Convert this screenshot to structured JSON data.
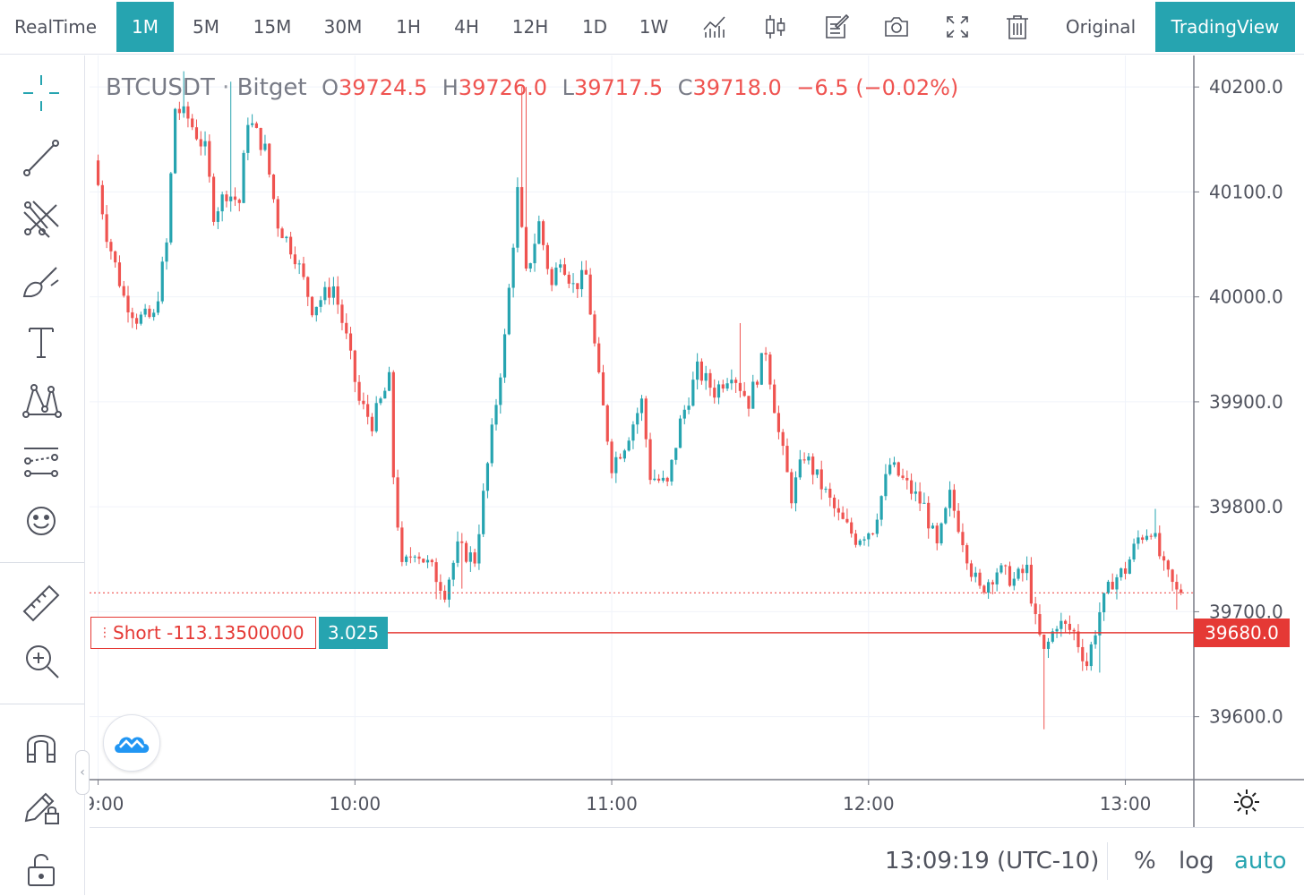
{
  "toolbar": {
    "realtime": "RealTime",
    "intervals": [
      "1M",
      "5M",
      "15M",
      "30M",
      "1H",
      "4H",
      "12H",
      "1D",
      "1W"
    ],
    "active_interval": "1M",
    "icons": [
      "indicators-icon",
      "candle-type-icon",
      "note-icon",
      "camera-icon",
      "fullscreen-icon",
      "trash-icon"
    ],
    "original": "Original",
    "tradingview": "TradingView"
  },
  "sidebar": {
    "tools": [
      "crosshair-icon",
      "trend-line-icon",
      "pitchfork-icon",
      "brush-icon",
      "text-tool-icon",
      "pattern-icon",
      "forecast-icon",
      "emoji-icon",
      "ruler-icon",
      "zoom-in-icon",
      "magnet-icon",
      "lock-drawing-icon",
      "unlock-icon"
    ]
  },
  "legend": {
    "symbol": "BTCUSDT",
    "exchange": "Bitget",
    "o_label": "O",
    "o": "39724.5",
    "h_label": "H",
    "h": "39726.0",
    "l_label": "L",
    "l": "39717.5",
    "c_label": "C",
    "c": "39718.0",
    "change": "−6.5 (−0.02%)"
  },
  "position": {
    "label": "Short -113.13500000",
    "qty": "3.025",
    "price": 39680.0,
    "price_label": "39680.0"
  },
  "last_price": 39718.0,
  "bottom_bar": {
    "time": "13:09:19 (UTC-10)",
    "percent": "%",
    "log": "log",
    "auto": "auto"
  },
  "colors": {
    "up": "#26a4b0",
    "down": "#ef5350",
    "accent": "#26a4b0",
    "position": "#e53935"
  },
  "chart_data": {
    "type": "candlestick",
    "interval": "1 minute",
    "y_ticks": [
      "40200.0",
      "40100.0",
      "40000.0",
      "39900.0",
      "39800.0",
      "39700.0",
      "39600.0"
    ],
    "x_ticks": [
      "09:00",
      "10:00",
      "11:00",
      "12:00",
      "13:00"
    ],
    "ylim": [
      39540,
      40230
    ],
    "xlim_minutes": [
      -2,
      256
    ],
    "current_price": 39718.0,
    "anchors": [
      {
        "t": 0,
        "p": 40130
      },
      {
        "t": 3,
        "p": 40060
      },
      {
        "t": 7,
        "p": 40000
      },
      {
        "t": 10,
        "p": 39980
      },
      {
        "t": 14,
        "p": 39980
      },
      {
        "t": 17,
        "p": 40050
      },
      {
        "t": 19,
        "p": 40180
      },
      {
        "t": 22,
        "p": 40170
      },
      {
        "t": 26,
        "p": 40140
      },
      {
        "t": 28,
        "p": 40080
      },
      {
        "t": 31,
        "p": 40100
      },
      {
        "t": 34,
        "p": 40090
      },
      {
        "t": 36,
        "p": 40170
      },
      {
        "t": 40,
        "p": 40140
      },
      {
        "t": 43,
        "p": 40070
      },
      {
        "t": 47,
        "p": 40040
      },
      {
        "t": 51,
        "p": 39990
      },
      {
        "t": 56,
        "p": 40010
      },
      {
        "t": 59,
        "p": 39960
      },
      {
        "t": 62,
        "p": 39900
      },
      {
        "t": 65,
        "p": 39880
      },
      {
        "t": 69,
        "p": 39920
      },
      {
        "t": 70,
        "p": 39830
      },
      {
        "t": 72,
        "p": 39740
      },
      {
        "t": 75,
        "p": 39760
      },
      {
        "t": 79,
        "p": 39740
      },
      {
        "t": 82,
        "p": 39720
      },
      {
        "t": 85,
        "p": 39760
      },
      {
        "t": 89,
        "p": 39750
      },
      {
        "t": 92,
        "p": 39840
      },
      {
        "t": 94,
        "p": 39900
      },
      {
        "t": 96,
        "p": 39960
      },
      {
        "t": 99,
        "p": 40100
      },
      {
        "t": 101,
        "p": 40020
      },
      {
        "t": 104,
        "p": 40070
      },
      {
        "t": 107,
        "p": 40010
      },
      {
        "t": 109,
        "p": 40040
      },
      {
        "t": 112,
        "p": 40010
      },
      {
        "t": 115,
        "p": 40020
      },
      {
        "t": 118,
        "p": 39920
      },
      {
        "t": 121,
        "p": 39840
      },
      {
        "t": 124,
        "p": 39860
      },
      {
        "t": 128,
        "p": 39900
      },
      {
        "t": 130,
        "p": 39830
      },
      {
        "t": 134,
        "p": 39820
      },
      {
        "t": 137,
        "p": 39880
      },
      {
        "t": 141,
        "p": 39930
      },
      {
        "t": 145,
        "p": 39910
      },
      {
        "t": 149,
        "p": 39930
      },
      {
        "t": 153,
        "p": 39900
      },
      {
        "t": 157,
        "p": 39950
      },
      {
        "t": 160,
        "p": 39870
      },
      {
        "t": 163,
        "p": 39810
      },
      {
        "t": 166,
        "p": 39850
      },
      {
        "t": 170,
        "p": 39820
      },
      {
        "t": 174,
        "p": 39790
      },
      {
        "t": 178,
        "p": 39770
      },
      {
        "t": 182,
        "p": 39780
      },
      {
        "t": 186,
        "p": 39840
      },
      {
        "t": 190,
        "p": 39820
      },
      {
        "t": 194,
        "p": 39800
      },
      {
        "t": 197,
        "p": 39760
      },
      {
        "t": 200,
        "p": 39810
      },
      {
        "t": 203,
        "p": 39770
      },
      {
        "t": 205,
        "p": 39740
      },
      {
        "t": 207,
        "p": 39720
      },
      {
        "t": 211,
        "p": 39740
      },
      {
        "t": 215,
        "p": 39730
      },
      {
        "t": 218,
        "p": 39740
      },
      {
        "t": 220,
        "p": 39690
      },
      {
        "t": 222,
        "p": 39660
      },
      {
        "t": 225,
        "p": 39690
      },
      {
        "t": 229,
        "p": 39680
      },
      {
        "t": 232,
        "p": 39650
      },
      {
        "t": 235,
        "p": 39700
      },
      {
        "t": 238,
        "p": 39730
      },
      {
        "t": 241,
        "p": 39740
      },
      {
        "t": 244,
        "p": 39770
      },
      {
        "t": 247,
        "p": 39780
      },
      {
        "t": 250,
        "p": 39740
      },
      {
        "t": 253,
        "p": 39718
      }
    ],
    "wick_spikes": [
      {
        "t": 20,
        "high": 40215
      },
      {
        "t": 31,
        "high": 40205
      },
      {
        "t": 99,
        "high": 40200
      },
      {
        "t": 100,
        "high": 40200
      },
      {
        "t": 79,
        "low": 39712
      },
      {
        "t": 85,
        "low": 39722
      },
      {
        "t": 150,
        "high": 39975
      },
      {
        "t": 221,
        "low": 39588
      },
      {
        "t": 234,
        "low": 39642
      },
      {
        "t": 247,
        "high": 39798
      },
      {
        "t": 252,
        "low": 39702
      }
    ]
  }
}
